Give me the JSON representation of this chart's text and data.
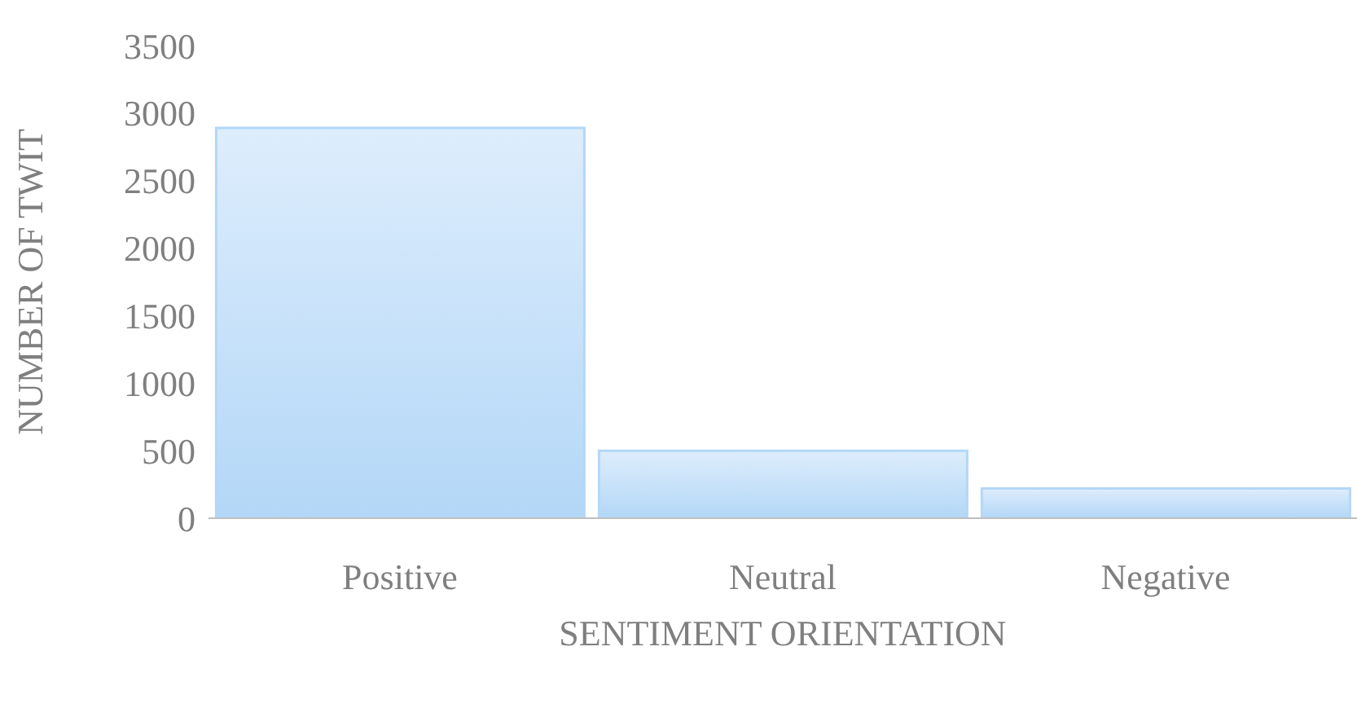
{
  "chart_data": {
    "type": "bar",
    "xlabel": "SENTIMENT ORIENTATION",
    "ylabel": "NUMBER OF TWIT",
    "categories": [
      "Positive",
      "Neutral",
      "Negative"
    ],
    "values": [
      2890,
      500,
      220
    ],
    "color": "#b3d7f7",
    "ylim": [
      0,
      3500
    ],
    "yticks": [
      0,
      500,
      1000,
      1500,
      2000,
      2500,
      3000,
      3500
    ],
    "grid": false
  }
}
